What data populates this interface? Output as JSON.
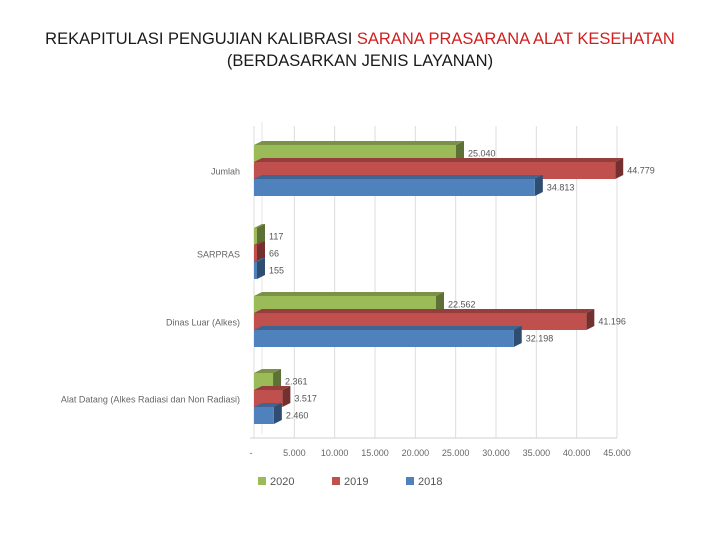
{
  "title": {
    "line1_black": "REKAPITULASI PENGUJIAN KALIBRASI ",
    "line1_red": "SARANA PRASARANA ALAT KESEHATAN",
    "line2": "(BERDASARKAN JENIS LAYANAN)"
  },
  "chart_data": {
    "type": "bar",
    "orientation": "horizontal",
    "style": "3d",
    "categories": [
      "Jumlah",
      "SARPRAS",
      "Dinas Luar (Alkes)",
      "Alat Datang (Alkes Radiasi dan Non Radiasi)"
    ],
    "series": [
      {
        "name": "2020",
        "color": "#9bbb59",
        "values": [
          25040,
          117,
          22562,
          2361
        ],
        "labels": [
          "25.040",
          "117",
          "22.562",
          "2.361"
        ]
      },
      {
        "name": "2019",
        "color": "#c0504d",
        "values": [
          44779,
          66,
          41196,
          3517
        ],
        "labels": [
          "44.779",
          "66",
          "41.196",
          "3.517"
        ]
      },
      {
        "name": "2018",
        "color": "#4f81bd",
        "values": [
          34813,
          155,
          32198,
          2460
        ],
        "labels": [
          "34.813",
          "155",
          "32.198",
          "2.460"
        ]
      }
    ],
    "xlim": [
      0,
      45000
    ],
    "xticks": [
      0,
      5000,
      10000,
      15000,
      20000,
      25000,
      30000,
      35000,
      40000,
      45000
    ],
    "xtick_labels": [
      "-",
      "5.000",
      "10.000",
      "15.000",
      "20.000",
      "25.000",
      "30.000",
      "35.000",
      "40.000",
      "45.000"
    ],
    "grid": true,
    "legend_position": "bottom",
    "legend_order": [
      "2020",
      "2019",
      "2018"
    ]
  }
}
